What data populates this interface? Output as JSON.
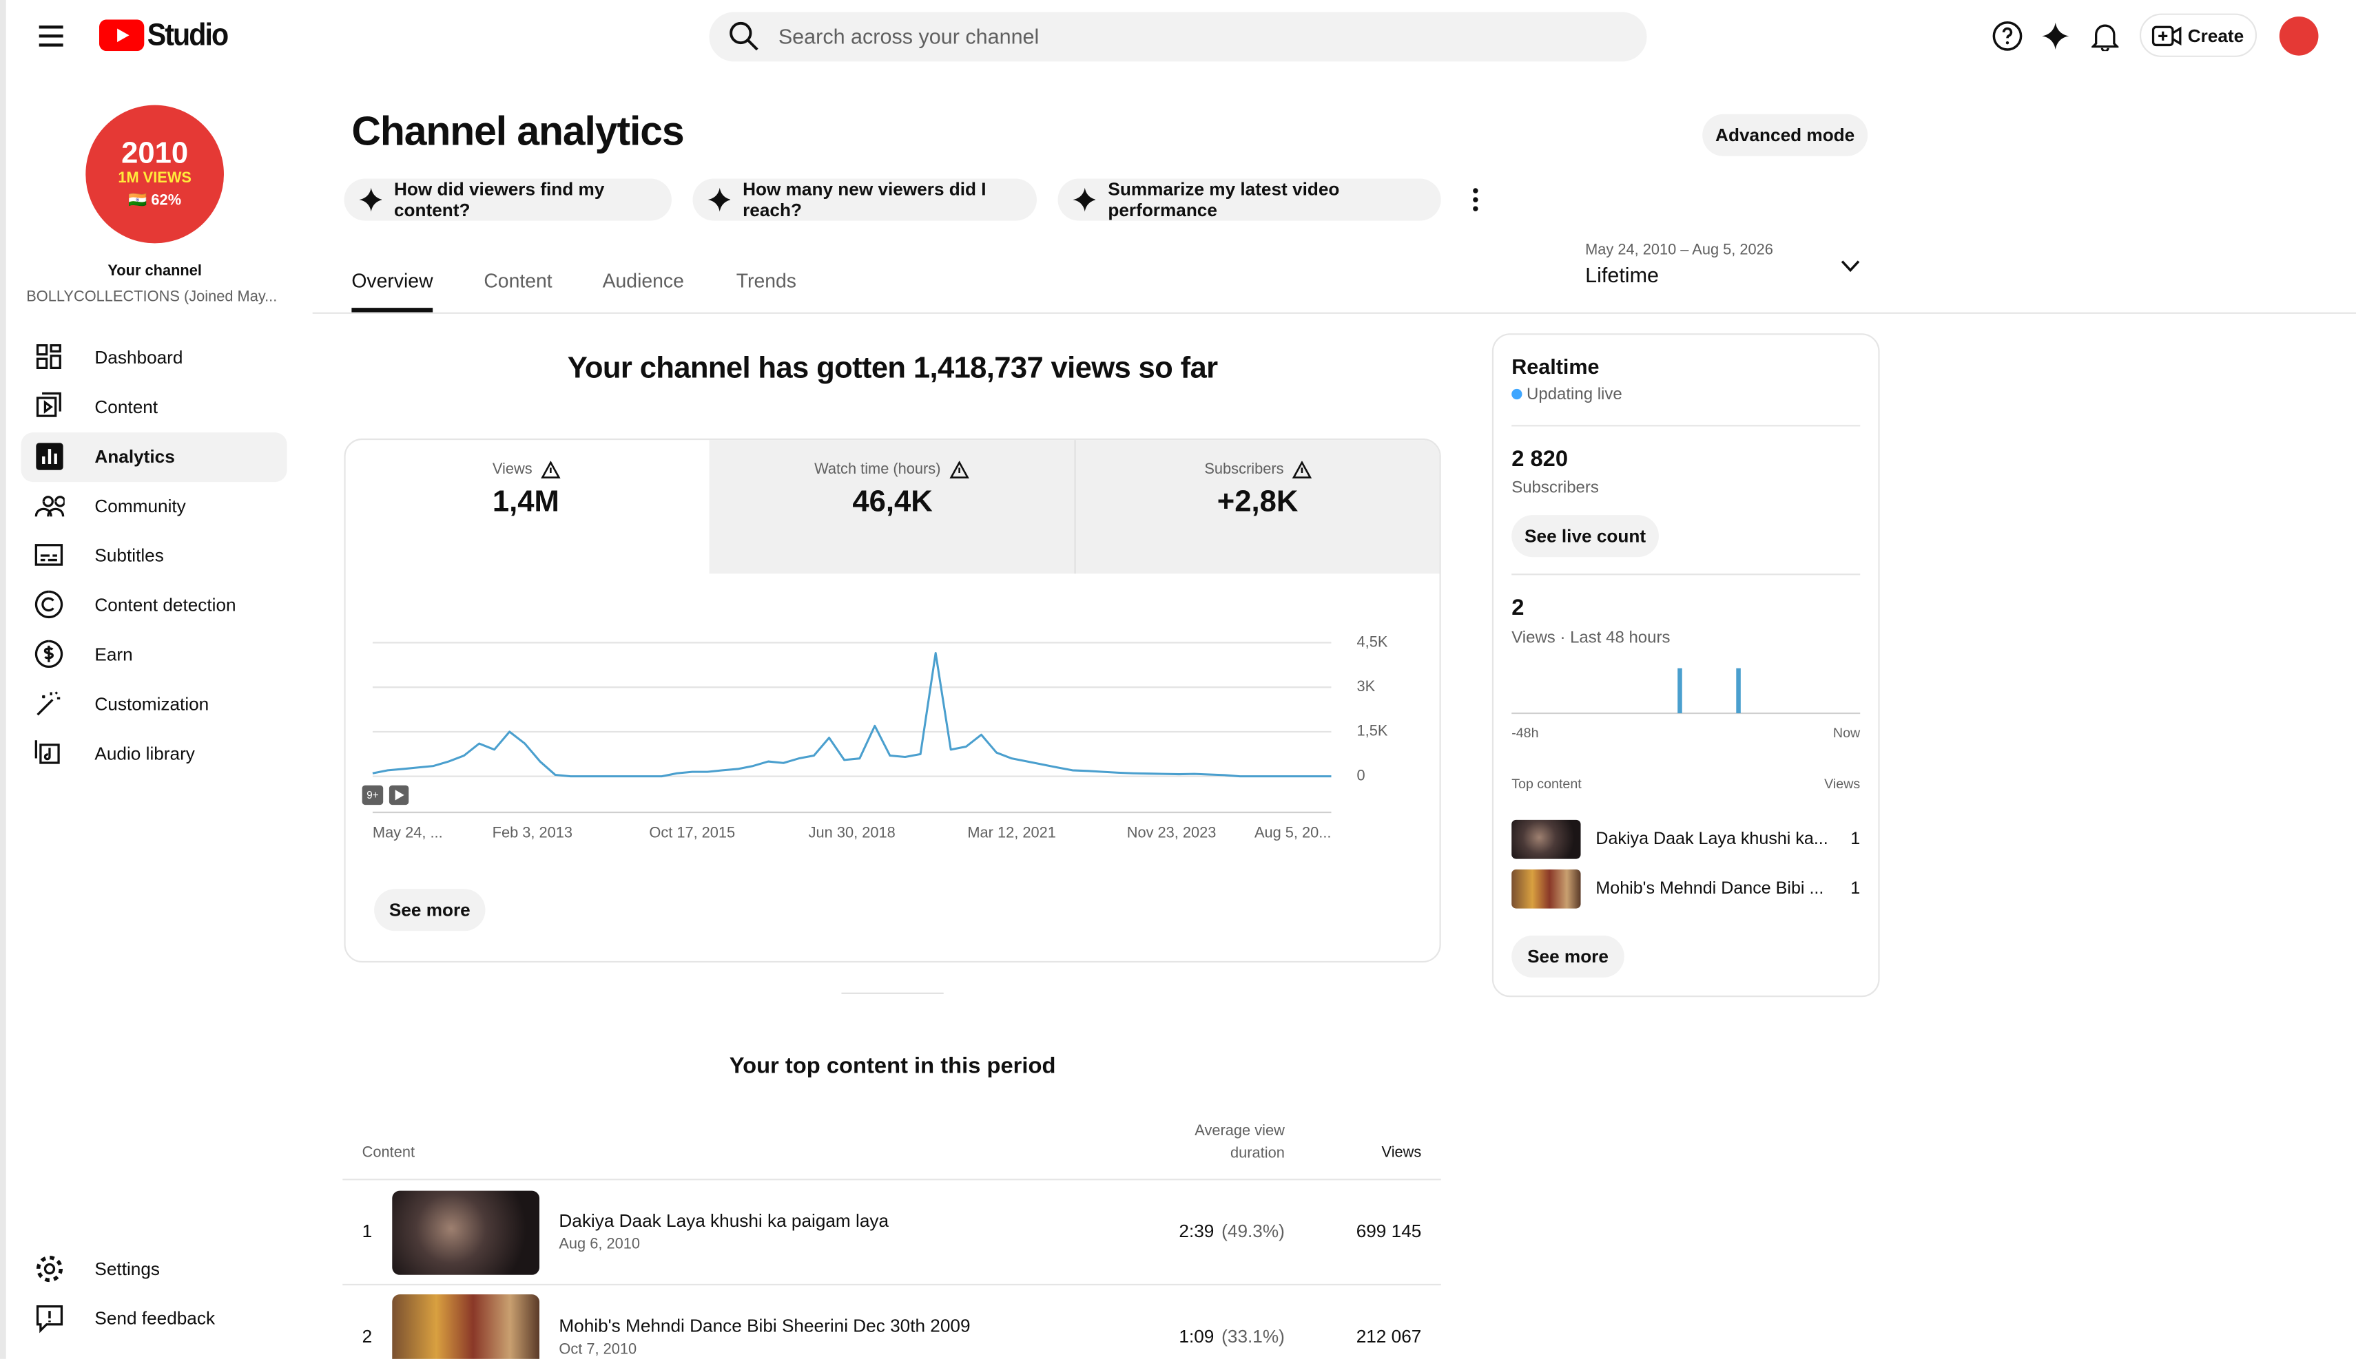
{
  "header": {
    "logo": "Studio",
    "search_placeholder": "Search across your channel",
    "create": "Create"
  },
  "sidebar": {
    "avatar_lines": [
      "2010",
      "1M VIEWS",
      "🇮🇳 62%"
    ],
    "channel_label": "Your channel",
    "channel_name": "BOLLYCOLLECTIONS (Joined May...",
    "nav": [
      "Dashboard",
      "Content",
      "Analytics",
      "Community",
      "Subtitles",
      "Content detection",
      "Earn",
      "Customization",
      "Audio library"
    ],
    "footer": [
      "Settings",
      "Send feedback"
    ]
  },
  "page": {
    "title": "Channel analytics",
    "advanced_mode": "Advanced mode",
    "prompts": [
      "How did viewers find my content?",
      "How many new viewers did I reach?",
      "Summarize my latest video performance"
    ],
    "tabs": [
      "Overview",
      "Content",
      "Audience",
      "Trends"
    ],
    "date_range": "May 24, 2010 – Aug 5, 2026",
    "period": "Lifetime"
  },
  "summary": {
    "headline": "Your channel has gotten 1,418,737 views so far",
    "metrics": [
      {
        "label": "Views",
        "value": "1,4M"
      },
      {
        "label": "Watch time (hours)",
        "value": "46,4K"
      },
      {
        "label": "Subscribers",
        "value": "+2,8K"
      }
    ],
    "see_more": "See more"
  },
  "views_chart": {
    "type": "line",
    "color": "#4a9fce",
    "grid": true,
    "ylim": [
      0,
      4500
    ],
    "yticks": [
      0,
      {
        "value": 1500,
        "label": "1,5K"
      },
      {
        "value": 3000,
        "label": "3K"
      },
      {
        "value": 4500,
        "label": "4,5K"
      }
    ],
    "xtick_labels": [
      "May 24, ...",
      "Feb 3, 2013",
      "Oct 17, 2015",
      "Jun 30, 2018",
      "Mar 12, 2021",
      "Nov 23, 2023",
      "Aug 5, 20..."
    ],
    "badge": "9+",
    "values": [
      100,
      200,
      250,
      300,
      350,
      500,
      700,
      1100,
      900,
      1500,
      1100,
      500,
      50,
      0,
      0,
      0,
      0,
      0,
      0,
      0,
      100,
      150,
      150,
      200,
      250,
      350,
      500,
      450,
      600,
      700,
      1300,
      550,
      600,
      1700,
      700,
      650,
      750,
      4150,
      900,
      1000,
      1400,
      800,
      600,
      500,
      400,
      300,
      200,
      180,
      150,
      120,
      100,
      90,
      80,
      70,
      80,
      60,
      40,
      0,
      0,
      0,
      0,
      0,
      0,
      0
    ]
  },
  "top_content": {
    "title": "Your top content in this period",
    "columns": [
      "Content",
      "Average view duration",
      "Views"
    ],
    "rows": [
      {
        "rank": "1",
        "title": "Dakiya Daak Laya khushi ka paigam laya",
        "date": "Aug 6, 2010",
        "duration": "2:39",
        "percent": "(49.3%)",
        "views": "699 145"
      },
      {
        "rank": "2",
        "title": "Mohib's Mehndi Dance Bibi Sheerini Dec 30th 2009",
        "date": "Oct 7, 2010",
        "duration": "1:09",
        "percent": "(33.1%)",
        "views": "212 067"
      }
    ]
  },
  "realtime": {
    "title": "Realtime",
    "status": "Updating live",
    "subscribers": "2 820",
    "subscribers_label": "Subscribers",
    "live_count": "See live count",
    "views": "2",
    "views_label": "Views · Last 48 hours",
    "chart": {
      "type": "bar",
      "color": "#4a9fce",
      "values": [
        1,
        1
      ],
      "x_labels": [
        "-48h",
        "Now"
      ]
    },
    "top_content_label": "Top content",
    "views_column": "Views",
    "items": [
      {
        "title": "Dakiya Daak Laya khushi ka...",
        "views": "1"
      },
      {
        "title": "Mohib's Mehndi Dance Bibi ...",
        "views": "1"
      }
    ],
    "see_more": "See more"
  }
}
